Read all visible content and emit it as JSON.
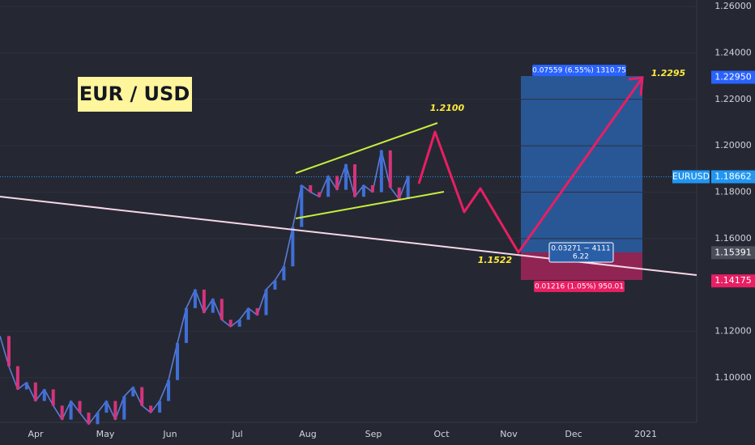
{
  "chart_title": "EUR / USD",
  "symbol": "EURUSD",
  "price_axis": {
    "ylim": [
      1.0808,
      1.2628
    ],
    "ticks": [
      {
        "value": 1.26,
        "label": "1.26000"
      },
      {
        "value": 1.24,
        "label": "1.24000"
      },
      {
        "value": 1.22,
        "label": "1.22000"
      },
      {
        "value": 1.2,
        "label": "1.20000"
      },
      {
        "value": 1.18,
        "label": "1.18000"
      },
      {
        "value": 1.16,
        "label": "1.16000"
      },
      {
        "value": 1.12,
        "label": "1.12000"
      },
      {
        "value": 1.1,
        "label": "1.10000"
      }
    ],
    "badges": [
      {
        "value": 1.2295,
        "label": "1.22950",
        "color": "#2962ff"
      },
      {
        "value": 1.18662,
        "label": "1.18662",
        "color": "#2196f3"
      },
      {
        "value": 1.15391,
        "label": "1.15391",
        "color": "#4a4e5a"
      },
      {
        "value": 1.14175,
        "label": "1.14175",
        "color": "#e91e63"
      }
    ]
  },
  "time_axis": [
    "Apr",
    "May",
    "Jun",
    "Jul",
    "Aug",
    "Sep",
    "Oct",
    "Nov",
    "Dec",
    "2021"
  ],
  "closes": [
    1.118,
    1.105,
    1.095,
    1.098,
    1.09,
    1.095,
    1.088,
    1.082,
    1.09,
    1.085,
    1.08,
    1.085,
    1.09,
    1.082,
    1.092,
    1.096,
    1.088,
    1.085,
    1.09,
    1.099,
    1.115,
    1.13,
    1.138,
    1.128,
    1.134,
    1.125,
    1.122,
    1.125,
    1.13,
    1.127,
    1.138,
    1.142,
    1.148,
    1.165,
    1.183,
    1.18,
    1.178,
    1.187,
    1.181,
    1.192,
    1.178,
    1.183,
    1.18,
    1.198,
    1.182,
    1.177,
    1.187
  ],
  "annotations": [
    "1.2100",
    "1.2295",
    "1.1522"
  ],
  "position_tool": {
    "target": "0.07559 (6.55%) 1310.75",
    "center_line1": "0.03271 ~ 4111",
    "center_line2": "6.22",
    "stop": "0.01216 (1.05%) 950.01"
  }
}
